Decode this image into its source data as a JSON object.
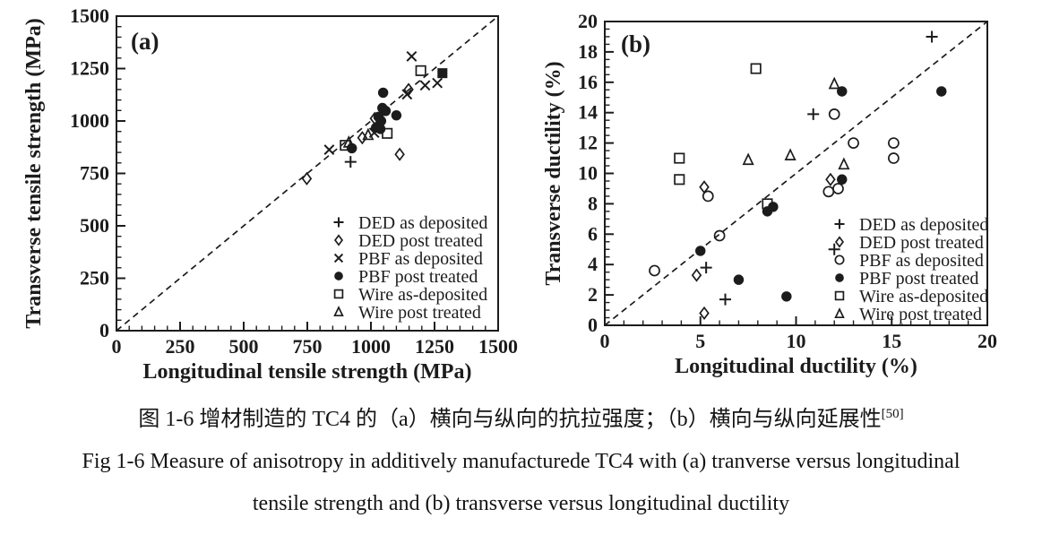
{
  "caption": {
    "line_zh": "图 1-6 增材制造的 TC4 的（a）横向与纵向的抗拉强度；（b）横向与纵向延展性",
    "line_zh_sup": "[50]",
    "line_en_1": "Fig 1-6 Measure of anisotropy in additively manufacturede TC4 with (a) tranverse versus longitudinal",
    "line_en_2": "tensile strength and (b) transverse versus longitudinal ductility"
  },
  "colors": {
    "ink": "#1c1c1c",
    "background": "#ffffff"
  },
  "chart_data": [
    {
      "id": "a",
      "type": "scatter",
      "panel_label": "(a)",
      "xlabel": "Longitudinal tensile strength (MPa)",
      "ylabel": "Transverse tensile strength (MPa)",
      "xlim": [
        0,
        1500
      ],
      "ylim": [
        0,
        1500
      ],
      "x_major_ticks": [
        0,
        250,
        500,
        750,
        1000,
        1250,
        1500
      ],
      "y_major_ticks": [
        0,
        250,
        500,
        750,
        1000,
        1250,
        1500
      ],
      "x_minor_step": 50,
      "y_minor_step": 50,
      "grid": false,
      "legend_position": "lower-right",
      "reference_line": {
        "style": "dashed",
        "from": [
          0,
          0
        ],
        "to": [
          1500,
          1500
        ]
      },
      "series": [
        {
          "name": "DED as deposited",
          "marker": "plus",
          "points": [
            [
              920,
              805
            ]
          ]
        },
        {
          "name": "DED post treated",
          "marker": "diamond-open",
          "points": [
            [
              748,
              725
            ],
            [
              966,
              920
            ],
            [
              1015,
              1012
            ],
            [
              1113,
              841
            ],
            [
              1148,
              1150
            ]
          ]
        },
        {
          "name": "PBF as deposited",
          "marker": "x",
          "points": [
            [
              836,
              863
            ],
            [
              1013,
              944
            ],
            [
              1142,
              1127
            ],
            [
              1160,
              1308
            ],
            [
              1213,
              1170
            ],
            [
              1261,
              1181
            ]
          ]
        },
        {
          "name": "PBF post treated",
          "marker": "circle-filled",
          "points": [
            [
              925,
              870
            ],
            [
              1020,
              968
            ],
            [
              1037,
              962
            ],
            [
              1040,
              1000
            ],
            [
              1030,
              1020
            ],
            [
              1100,
              1027
            ],
            [
              1058,
              1048
            ],
            [
              1045,
              1062
            ],
            [
              1048,
              1135
            ]
          ]
        },
        {
          "name": "Wire as-deposited",
          "marker": "square-open",
          "points": [
            [
              899,
              884
            ],
            [
              1064,
              941
            ],
            [
              1196,
              1240
            ]
          ]
        },
        {
          "name": "Wire post treated",
          "marker": "triangle-open",
          "points": [
            [
              913,
              898
            ],
            [
              989,
              934
            ]
          ]
        },
        {
          "name": "unlabeled filled square",
          "marker": "square-filled",
          "in_legend": false,
          "points": [
            [
              1281,
              1228
            ]
          ]
        }
      ]
    },
    {
      "id": "b",
      "type": "scatter",
      "panel_label": "(b)",
      "xlabel": "Longitudinal ductility (%)",
      "ylabel": "Transverse ductility (%)",
      "xlim": [
        0,
        20
      ],
      "ylim": [
        0,
        20
      ],
      "x_major_ticks": [
        0,
        5,
        10,
        15,
        20
      ],
      "y_major_ticks": [
        0,
        2,
        4,
        6,
        8,
        10,
        12,
        14,
        16,
        18,
        20
      ],
      "x_minor_step": 1,
      "y_minor_step": 0.5,
      "grid": false,
      "legend_position": "lower-right",
      "reference_line": {
        "style": "dashed",
        "from": [
          0,
          0
        ],
        "to": [
          20,
          20
        ]
      },
      "series": [
        {
          "name": "DED as deposited",
          "marker": "plus",
          "points": [
            [
              17.1,
              19.0
            ],
            [
              10.9,
              13.9
            ],
            [
              12.0,
              5.0
            ],
            [
              5.3,
              3.8
            ],
            [
              6.3,
              1.7
            ]
          ]
        },
        {
          "name": "DED post treated",
          "marker": "diamond-open",
          "points": [
            [
              5.2,
              9.1
            ],
            [
              11.8,
              9.6
            ],
            [
              4.8,
              3.3
            ],
            [
              5.2,
              0.8
            ]
          ]
        },
        {
          "name": "PBF as deposited",
          "marker": "circle-open",
          "points": [
            [
              2.6,
              3.6
            ],
            [
              5.4,
              8.5
            ],
            [
              6.0,
              5.9
            ],
            [
              12.0,
              13.9
            ],
            [
              13.0,
              12.0
            ],
            [
              15.1,
              12.0
            ],
            [
              15.1,
              11.0
            ],
            [
              11.7,
              8.8
            ],
            [
              12.2,
              9.0
            ]
          ]
        },
        {
          "name": "PBF post treated",
          "marker": "circle-filled",
          "points": [
            [
              5.0,
              4.9
            ],
            [
              8.5,
              7.5
            ],
            [
              8.8,
              7.8
            ],
            [
              7.0,
              3.0
            ],
            [
              9.5,
              1.9
            ],
            [
              12.4,
              15.4
            ],
            [
              17.6,
              15.4
            ],
            [
              12.4,
              9.6
            ]
          ]
        },
        {
          "name": "Wire as-deposited",
          "marker": "square-open",
          "points": [
            [
              7.9,
              16.9
            ],
            [
              3.9,
              11.0
            ],
            [
              3.9,
              9.6
            ],
            [
              8.5,
              8.0
            ]
          ]
        },
        {
          "name": "Wire post treated",
          "marker": "triangle-open",
          "points": [
            [
              12.0,
              15.9
            ],
            [
              7.5,
              10.9
            ],
            [
              9.7,
              11.2
            ],
            [
              12.5,
              10.6
            ]
          ]
        }
      ]
    }
  ]
}
